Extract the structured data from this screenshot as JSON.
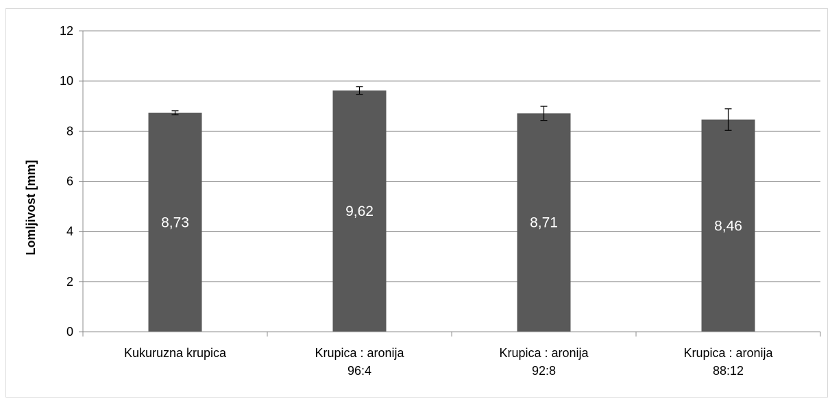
{
  "chart_data": {
    "type": "bar",
    "title": "",
    "xlabel": "",
    "ylabel": "Lomljivost [mm]",
    "ylim": [
      0,
      12
    ],
    "yticks": [
      0,
      2,
      4,
      6,
      8,
      10,
      12
    ],
    "grid": true,
    "legend": "none",
    "bar_color": "#595959",
    "categories": [
      [
        "Kukuruzna krupica"
      ],
      [
        "Krupica : aronija",
        "96:4"
      ],
      [
        "Krupica : aronija",
        "92:8"
      ],
      [
        "Krupica : aronija",
        "88:12"
      ]
    ],
    "values": [
      8.73,
      9.62,
      8.71,
      8.46
    ],
    "value_labels": [
      "8,73",
      "9,62",
      "8,71",
      "8,46"
    ],
    "errors": [
      0.08,
      0.15,
      0.28,
      0.43
    ]
  }
}
